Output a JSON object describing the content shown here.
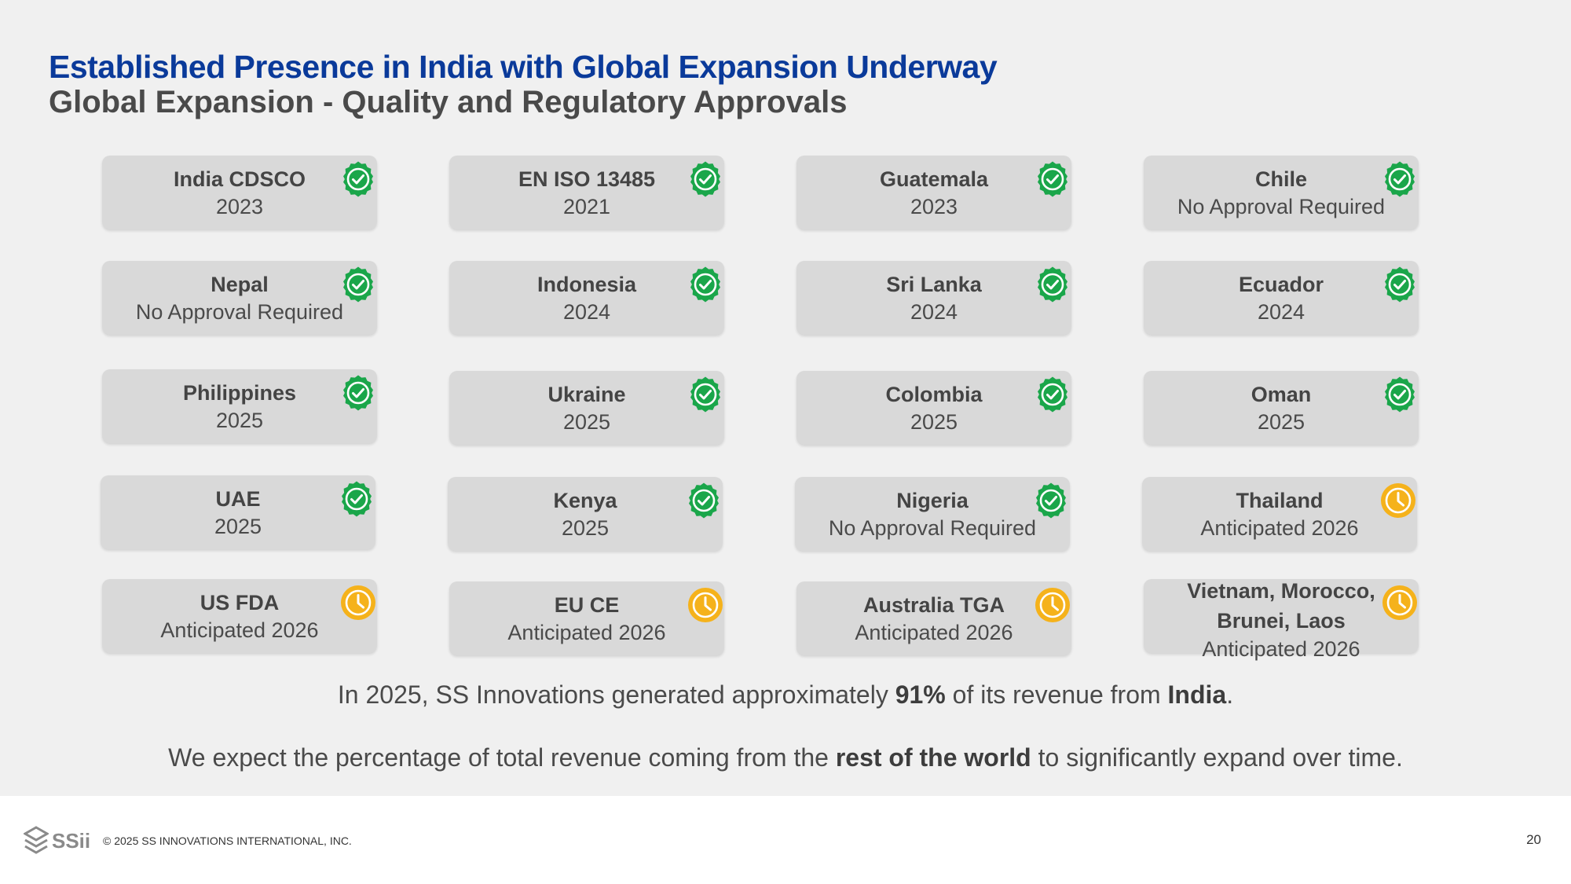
{
  "header": {
    "title": "Established Presence in India with Global Expansion Underway",
    "subtitle": "Global Expansion - Quality and Regulatory Approvals"
  },
  "colors": {
    "title_blue": "#0a3a9a",
    "approved_green": "#1aa64a",
    "pending_orange": "#f5b21b",
    "card_gray": "#d9d9d9"
  },
  "approvals": [
    {
      "name": "India CDSCO",
      "status": "2023",
      "icon": "approved-check-icon"
    },
    {
      "name": "EN ISO 13485",
      "status": "2021",
      "icon": "approved-check-icon"
    },
    {
      "name": "Guatemala",
      "status": "2023",
      "icon": "approved-check-icon"
    },
    {
      "name": "Chile",
      "status": "No Approval Required",
      "icon": "approved-check-icon"
    },
    {
      "name": "Nepal",
      "status": "No Approval Required",
      "icon": "approved-check-icon"
    },
    {
      "name": "Indonesia",
      "status": "2024",
      "icon": "approved-check-icon"
    },
    {
      "name": "Sri Lanka",
      "status": "2024",
      "icon": "approved-check-icon"
    },
    {
      "name": "Ecuador",
      "status": "2024",
      "icon": "approved-check-icon"
    },
    {
      "name": "Philippines",
      "status": "2025",
      "icon": "approved-check-icon"
    },
    {
      "name": "Ukraine",
      "status": "2025",
      "icon": "approved-check-icon"
    },
    {
      "name": "Colombia",
      "status": "2025",
      "icon": "approved-check-icon"
    },
    {
      "name": "Oman",
      "status": "2025",
      "icon": "approved-check-icon"
    },
    {
      "name": "UAE",
      "status": "2025",
      "icon": "approved-check-icon"
    },
    {
      "name": "Kenya",
      "status": "2025",
      "icon": "approved-check-icon"
    },
    {
      "name": "Nigeria",
      "status": "No Approval Required",
      "icon": "approved-check-icon"
    },
    {
      "name": "Thailand",
      "status": "Anticipated 2026",
      "icon": "pending-clock-icon"
    },
    {
      "name": "US FDA",
      "status": "Anticipated 2026",
      "icon": "pending-clock-icon"
    },
    {
      "name": "EU CE",
      "status": "Anticipated 2026",
      "icon": "pending-clock-icon"
    },
    {
      "name": "Australia TGA",
      "status": "Anticipated 2026",
      "icon": "pending-clock-icon"
    },
    {
      "name": "Vietnam, Morocco,",
      "name2": "Brunei, Laos",
      "status": "Anticipated 2026",
      "icon": "pending-clock-icon"
    }
  ],
  "summary": {
    "line1_a": "In 2025, SS Innovations generated approximately ",
    "line1_b": "91%",
    "line1_c": " of its revenue from ",
    "line1_d": "India",
    "line1_e": ".",
    "line2_a": "We expect the percentage of total revenue coming from the ",
    "line2_b": "rest of the world",
    "line2_c": " to significantly expand over time."
  },
  "footer": {
    "logo_text": "SSii",
    "copyright": "© 2025 SS INNOVATIONS INTERNATIONAL, INC.",
    "page_number": "20"
  }
}
